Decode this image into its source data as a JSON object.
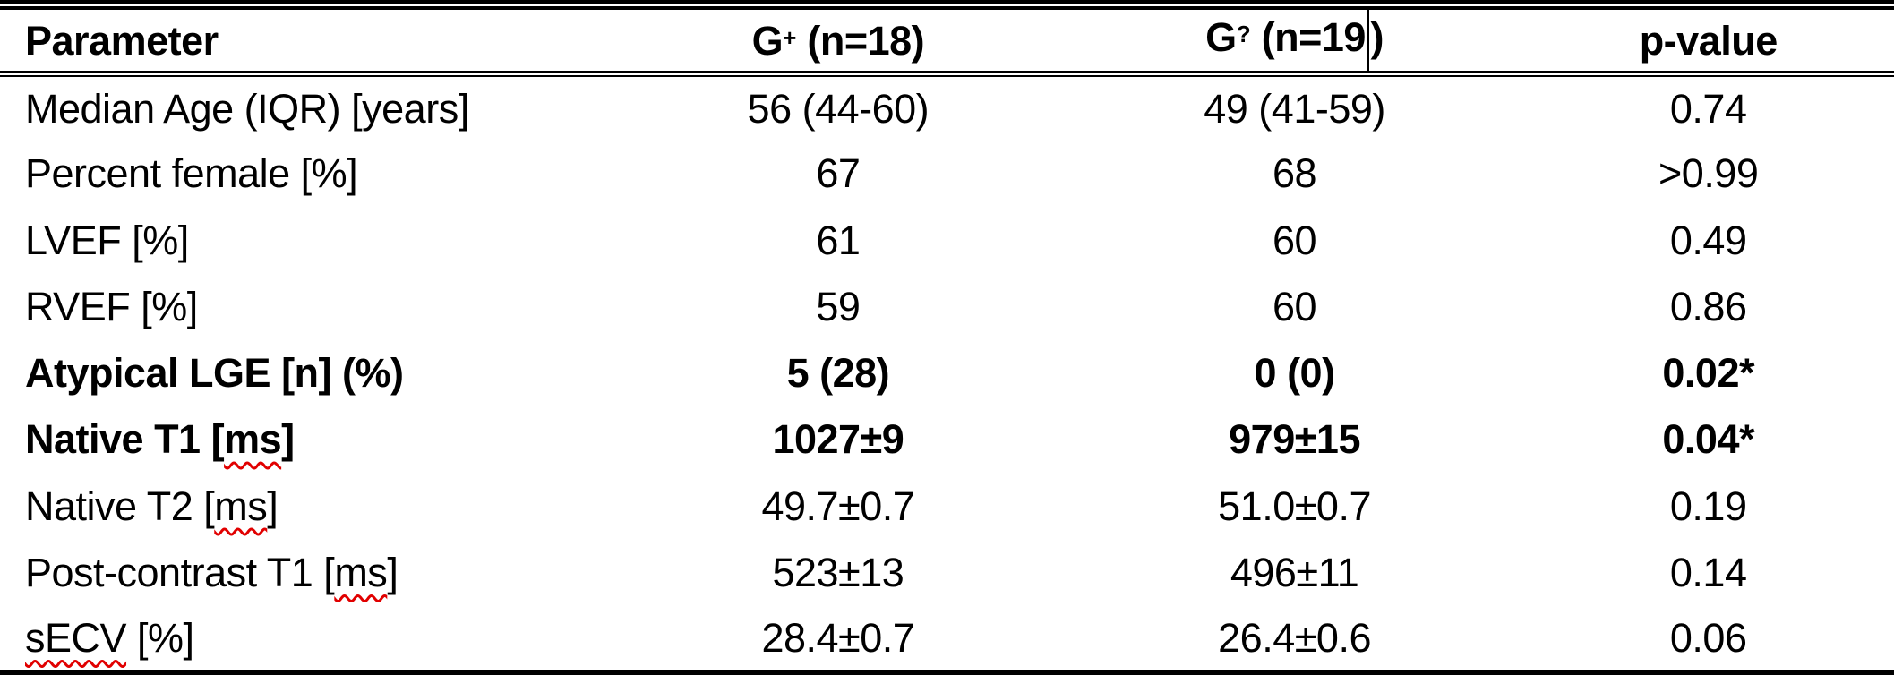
{
  "colors": {
    "text": "#000000",
    "background": "#ffffff",
    "table_border": "#000000",
    "spellcheck_underline": "#e10000"
  },
  "table": {
    "header": [
      {
        "id": "parameter",
        "align": "left",
        "parts": [
          {
            "text": "Parameter"
          }
        ]
      },
      {
        "id": "g-plus",
        "align": "center",
        "parts": [
          {
            "text": "G"
          },
          {
            "text": "+",
            "sup": true
          },
          {
            "text": " (n=18)"
          }
        ]
      },
      {
        "id": "g-query",
        "align": "center",
        "parts": [
          {
            "text": "G"
          },
          {
            "text": "?",
            "sup": true
          },
          {
            "text": " (n=19"
          },
          {
            "caret": true
          },
          {
            "text": ")"
          }
        ]
      },
      {
        "id": "p-value",
        "align": "center",
        "parts": [
          {
            "text": "p-value"
          }
        ]
      }
    ],
    "rows": [
      {
        "bold": false,
        "cells": [
          {
            "parts": [
              {
                "text": "Median Age (IQR) [years]"
              }
            ]
          },
          {
            "parts": [
              {
                "text": "56 (44-60)"
              }
            ]
          },
          {
            "parts": [
              {
                "text": "49 (41-59)"
              }
            ]
          },
          {
            "parts": [
              {
                "text": "0.74"
              }
            ]
          }
        ]
      },
      {
        "bold": false,
        "cells": [
          {
            "parts": [
              {
                "text": "Percent female [%]"
              }
            ]
          },
          {
            "parts": [
              {
                "text": "67"
              }
            ]
          },
          {
            "parts": [
              {
                "text": "68"
              }
            ]
          },
          {
            "parts": [
              {
                "text": ">0.99"
              }
            ]
          }
        ]
      },
      {
        "bold": false,
        "cells": [
          {
            "parts": [
              {
                "text": "LVEF [%]"
              }
            ]
          },
          {
            "parts": [
              {
                "text": "61"
              }
            ]
          },
          {
            "parts": [
              {
                "text": "60"
              }
            ]
          },
          {
            "parts": [
              {
                "text": "0.49"
              }
            ]
          }
        ]
      },
      {
        "bold": false,
        "cells": [
          {
            "parts": [
              {
                "text": "RVEF [%]"
              }
            ]
          },
          {
            "parts": [
              {
                "text": "59"
              }
            ]
          },
          {
            "parts": [
              {
                "text": "60"
              }
            ]
          },
          {
            "parts": [
              {
                "text": "0.86"
              }
            ]
          }
        ]
      },
      {
        "bold": true,
        "cells": [
          {
            "parts": [
              {
                "text": "Atypical LGE [n] (%)"
              }
            ]
          },
          {
            "parts": [
              {
                "text": "5 (28)"
              }
            ]
          },
          {
            "parts": [
              {
                "text": "0 (0)"
              }
            ]
          },
          {
            "parts": [
              {
                "text": "0.02*"
              }
            ]
          }
        ]
      },
      {
        "bold": true,
        "cells": [
          {
            "parts": [
              {
                "text": "Native T1 ["
              },
              {
                "text": "ms",
                "wavy": true
              },
              {
                "text": "]"
              }
            ]
          },
          {
            "parts": [
              {
                "text": "1027±9"
              }
            ]
          },
          {
            "parts": [
              {
                "text": "979±15"
              }
            ]
          },
          {
            "parts": [
              {
                "text": "0.04*"
              }
            ]
          }
        ]
      },
      {
        "bold": false,
        "cells": [
          {
            "parts": [
              {
                "text": "Native T2 ["
              },
              {
                "text": "ms",
                "wavy": true
              },
              {
                "text": "]"
              }
            ]
          },
          {
            "parts": [
              {
                "text": "49.7±0.7"
              }
            ]
          },
          {
            "parts": [
              {
                "text": "51.0±0.7"
              }
            ]
          },
          {
            "parts": [
              {
                "text": "0.19"
              }
            ]
          }
        ]
      },
      {
        "bold": false,
        "cells": [
          {
            "parts": [
              {
                "text": "Post-contrast T1 ["
              },
              {
                "text": "ms",
                "wavy": true
              },
              {
                "text": "]"
              }
            ]
          },
          {
            "parts": [
              {
                "text": "523±13"
              }
            ]
          },
          {
            "parts": [
              {
                "text": "496±11"
              }
            ]
          },
          {
            "parts": [
              {
                "text": "0.14"
              }
            ]
          }
        ]
      },
      {
        "bold": false,
        "cells": [
          {
            "parts": [
              {
                "text": "sECV",
                "wavy": true
              },
              {
                "text": " [%]"
              }
            ]
          },
          {
            "parts": [
              {
                "text": "28.4±0.7"
              }
            ]
          },
          {
            "parts": [
              {
                "text": "26.4±0.6"
              }
            ]
          },
          {
            "parts": [
              {
                "text": "0.06"
              }
            ]
          }
        ]
      }
    ]
  }
}
